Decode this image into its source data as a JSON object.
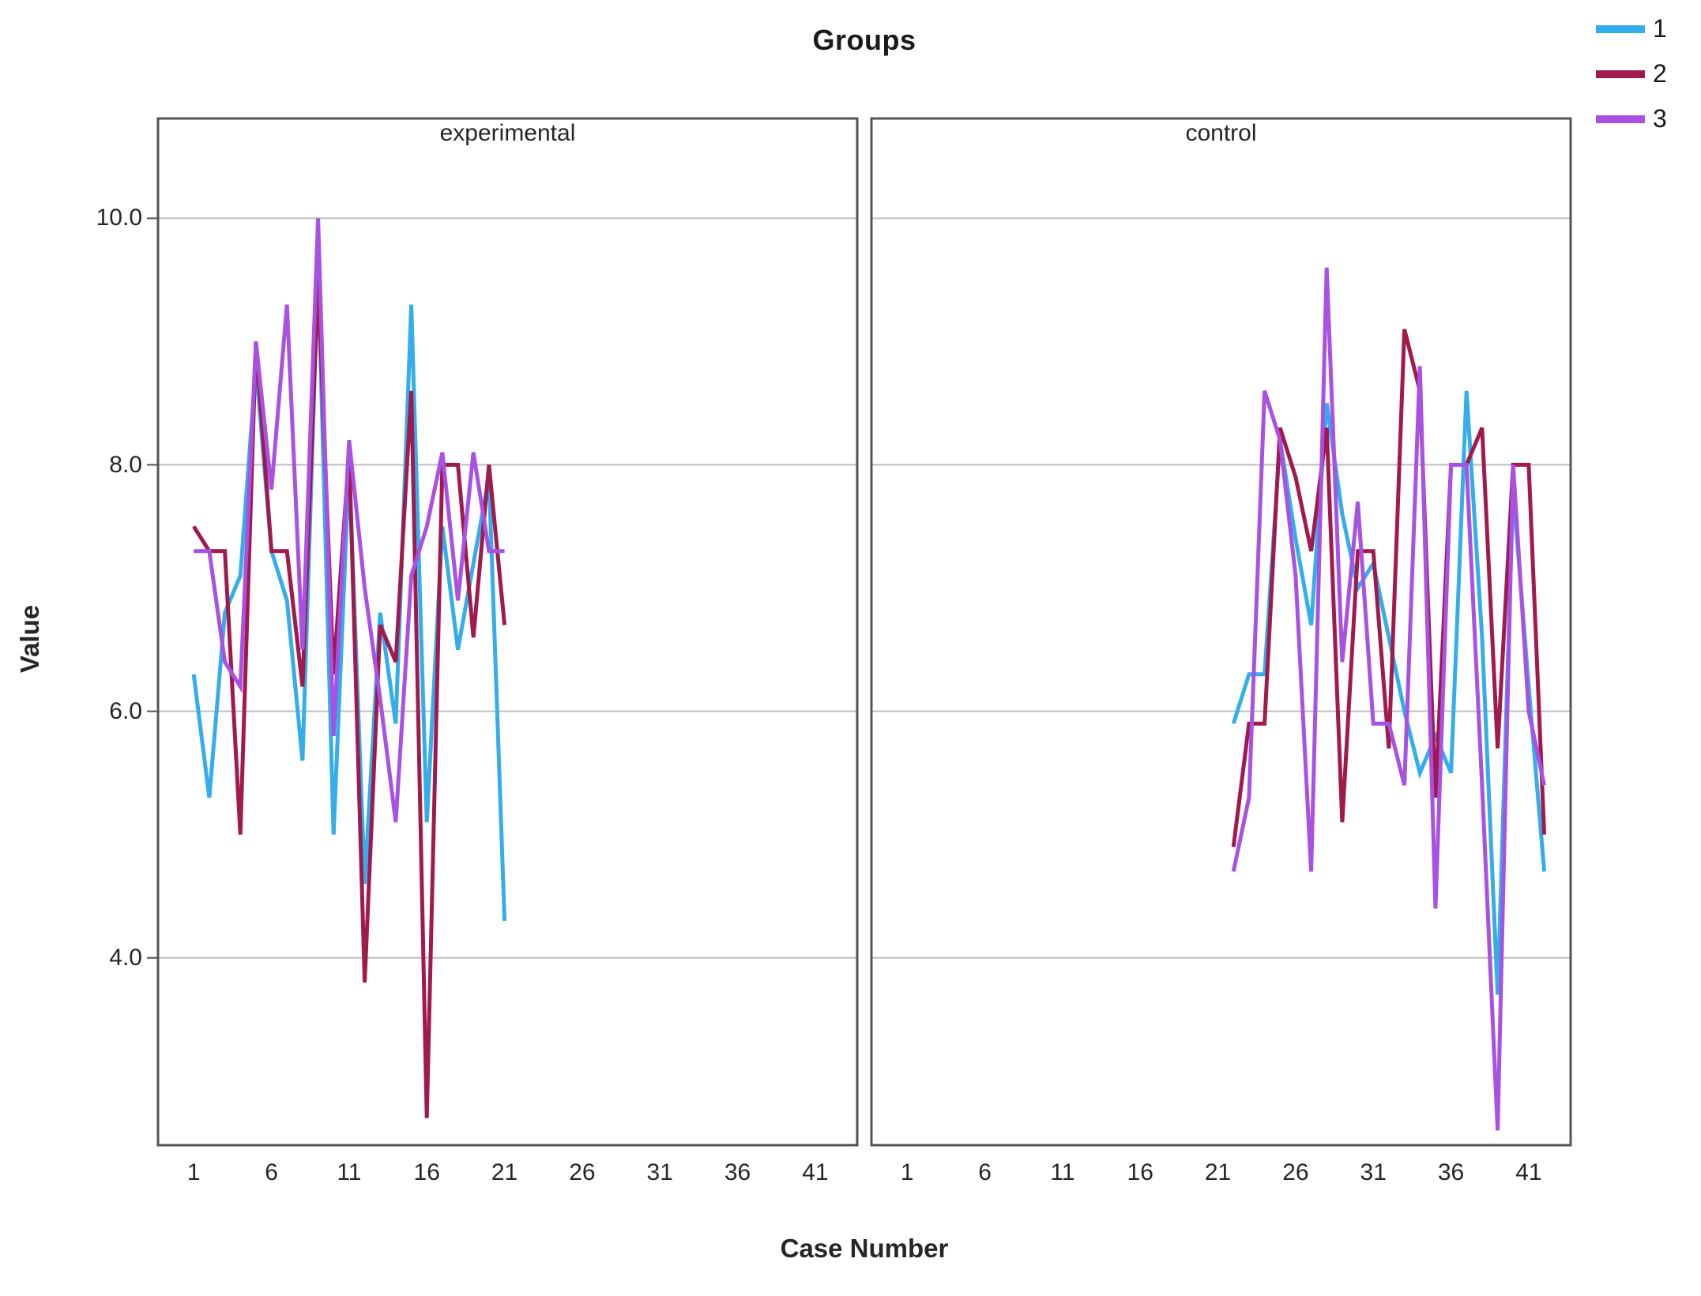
{
  "window": {
    "title": "Groups multiple line chart"
  },
  "header": {
    "title": "Groups"
  },
  "axes": {
    "y_title": "Value",
    "x_title": "Case Number",
    "y_tick_labels": [
      "10.0",
      "8.0",
      "6.0",
      "4.0"
    ],
    "y_tick_values": [
      10,
      8,
      6,
      4
    ],
    "x_tick_values": [
      1,
      6,
      11,
      16,
      21,
      26,
      31,
      36,
      41
    ]
  },
  "legend": {
    "entries": [
      {
        "label": "1",
        "color": "#33AEEA"
      },
      {
        "label": "2",
        "color": "#A01A4E"
      },
      {
        "label": "3",
        "color": "#A851E3"
      }
    ]
  },
  "colors": {
    "series1": "#33AEEA",
    "series2": "#A01A4E",
    "series3": "#A851E3",
    "gridline": "#BFBFBF",
    "frame": "#545454",
    "background": "#ffffff",
    "text": "#262626"
  },
  "chart_data": {
    "type": "line",
    "title": "Groups",
    "xlabel": "Case Number",
    "ylabel": "Value",
    "legend_position": "top-right",
    "grid": "horizontal-only",
    "xlim": [
      -1.3,
      43.7
    ],
    "ylim": [
      2.48,
      10.81
    ],
    "y_ticks": [
      4,
      6,
      8,
      10
    ],
    "x_ticks": [
      1,
      6,
      11,
      16,
      21,
      26,
      31,
      36,
      41
    ],
    "panels": [
      {
        "title": "experimental",
        "first_case": 1,
        "cases": [
          1,
          2,
          3,
          4,
          5,
          6,
          7,
          8,
          9,
          10,
          11,
          12,
          13,
          14,
          15,
          16,
          17,
          18,
          19,
          20,
          21
        ],
        "series": [
          {
            "name": "1",
            "color": "#33AEEA",
            "values": [
              6.3,
              5.3,
              6.8,
              7.1,
              8.8,
              7.3,
              6.9,
              5.6,
              9.6,
              5.0,
              8.0,
              4.6,
              6.8,
              5.9,
              9.3,
              5.1,
              7.5,
              6.5,
              7.2,
              7.9,
              4.3
            ]
          },
          {
            "name": "2",
            "color": "#A01A4E",
            "values": [
              7.5,
              7.3,
              7.3,
              5.0,
              9.0,
              7.3,
              7.3,
              6.2,
              9.5,
              6.3,
              8.1,
              3.8,
              6.7,
              6.4,
              8.6,
              2.7,
              8.0,
              8.0,
              6.6,
              8.0,
              6.7
            ]
          },
          {
            "name": "3",
            "color": "#A851E3",
            "values": [
              7.3,
              7.3,
              6.4,
              6.2,
              9.0,
              7.8,
              9.3,
              6.5,
              10.0,
              5.8,
              8.2,
              7.0,
              6.1,
              5.1,
              7.1,
              7.5,
              8.1,
              6.9,
              8.1,
              7.3,
              7.3
            ]
          }
        ]
      },
      {
        "title": "control",
        "first_case": 22,
        "cases": [
          22,
          23,
          24,
          25,
          26,
          27,
          28,
          29,
          30,
          31,
          32,
          33,
          34,
          35,
          36,
          37,
          38,
          39,
          40,
          41,
          42
        ],
        "series": [
          {
            "name": "1",
            "color": "#33AEEA",
            "values": [
              5.9,
              6.3,
              6.3,
              8.2,
              7.4,
              6.7,
              8.5,
              7.6,
              7.0,
              7.2,
              6.6,
              6.0,
              5.5,
              5.8,
              5.5,
              8.6,
              6.6,
              3.7,
              7.8,
              6.2,
              4.7
            ]
          },
          {
            "name": "2",
            "color": "#A01A4E",
            "values": [
              4.9,
              5.9,
              5.9,
              8.3,
              7.9,
              7.3,
              8.3,
              5.1,
              7.3,
              7.3,
              5.7,
              9.1,
              8.6,
              5.3,
              8.0,
              8.0,
              8.3,
              5.7,
              8.0,
              8.0,
              5.0
            ]
          },
          {
            "name": "3",
            "color": "#A851E3",
            "values": [
              4.7,
              5.3,
              8.6,
              8.2,
              7.1,
              4.7,
              9.6,
              6.4,
              7.7,
              5.9,
              5.9,
              5.4,
              8.8,
              4.4,
              8.0,
              8.0,
              5.4,
              2.6,
              8.0,
              6.0,
              5.4
            ]
          }
        ]
      }
    ]
  }
}
